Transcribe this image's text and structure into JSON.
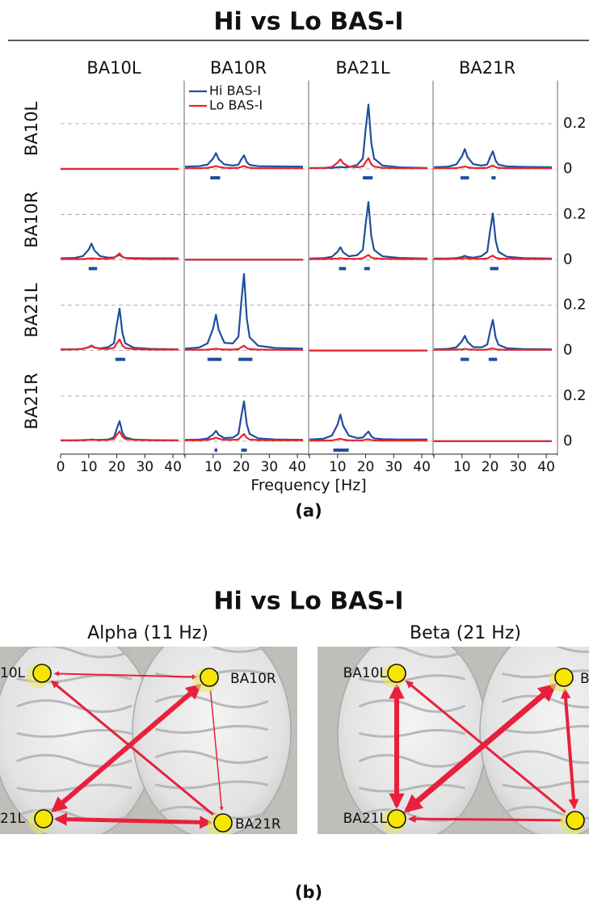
{
  "chart_data": {
    "type": "line",
    "title": "Hi vs Lo BAS-I",
    "xlabel": "Frequency [Hz]",
    "columns": [
      "BA10L",
      "BA10R",
      "BA21L",
      "BA21R"
    ],
    "rows": [
      "BA10L",
      "BA10R",
      "BA21L",
      "BA21R"
    ],
    "series": [
      {
        "name": "Hi BAS-I",
        "color": "#1f4e9c"
      },
      {
        "name": "Lo BAS-I",
        "color": "#e8262b"
      }
    ],
    "x": [
      0,
      5,
      8,
      10,
      11,
      12,
      14,
      17,
      19,
      20,
      21,
      22,
      23,
      26,
      32,
      42
    ],
    "xlim": [
      0,
      44
    ],
    "xticks": [
      0,
      10,
      20,
      30,
      40
    ],
    "ylim": [
      -0.05,
      0.39
    ],
    "yticks": [
      0,
      0.2
    ],
    "grid": true,
    "panels": [
      [
        {
          "values": [
            [
              0,
              0,
              0,
              0,
              0,
              0,
              0,
              0,
              0,
              0,
              0,
              0,
              0,
              0,
              0,
              0
            ],
            [
              0,
              0,
              0,
              0,
              0,
              0,
              0,
              0,
              0,
              0,
              0,
              0,
              0,
              0,
              0,
              0
            ]
          ],
          "sig": []
        },
        {
          "values": [
            [
              0.01,
              0.012,
              0.019,
              0.046,
              0.07,
              0.043,
              0.02,
              0.015,
              0.019,
              0.041,
              0.06,
              0.03,
              0.018,
              0.012,
              0.011,
              0.01
            ],
            [
              0.003,
              0.003,
              0.005,
              0.009,
              0.013,
              0.009,
              0.005,
              0.004,
              0.005,
              0.009,
              0.013,
              0.007,
              0.005,
              0.003,
              0.003,
              0.003
            ]
          ],
          "sig": [
            [
              9,
              12.5
            ]
          ]
        },
        {
          "values": [
            [
              0.004,
              0.004,
              0.005,
              0.007,
              0.009,
              0.007,
              0.008,
              0.018,
              0.046,
              0.172,
              0.284,
              0.116,
              0.046,
              0.015,
              0.007,
              0.004
            ],
            [
              0.003,
              0.004,
              0.009,
              0.027,
              0.043,
              0.025,
              0.01,
              0.007,
              0.011,
              0.03,
              0.048,
              0.021,
              0.01,
              0.005,
              0.003,
              0.003
            ]
          ],
          "sig": [
            [
              19,
              22.5
            ]
          ]
        },
        {
          "values": [
            [
              0.008,
              0.01,
              0.02,
              0.056,
              0.088,
              0.052,
              0.021,
              0.015,
              0.02,
              0.051,
              0.078,
              0.036,
              0.019,
              0.011,
              0.009,
              0.008
            ],
            [
              0.003,
              0.003,
              0.004,
              0.008,
              0.011,
              0.007,
              0.004,
              0.004,
              0.005,
              0.01,
              0.015,
              0.008,
              0.005,
              0.003,
              0.003,
              0.003
            ]
          ],
          "sig": [
            [
              9.5,
              12.5
            ],
            [
              20.5,
              22
            ]
          ]
        }
      ],
      [
        {
          "values": [
            [
              0.006,
              0.008,
              0.016,
              0.045,
              0.071,
              0.042,
              0.016,
              0.009,
              0.01,
              0.016,
              0.021,
              0.012,
              0.008,
              0.007,
              0.006,
              0.006
            ],
            [
              0.003,
              0.003,
              0.003,
              0.005,
              0.006,
              0.005,
              0.004,
              0.004,
              0.007,
              0.018,
              0.028,
              0.013,
              0.007,
              0.004,
              0.003,
              0.003
            ]
          ],
          "sig": [
            [
              10,
              13
            ]
          ]
        },
        {
          "values": [
            [
              0,
              0,
              0,
              0,
              0,
              0,
              0,
              0,
              0,
              0,
              0,
              0,
              0,
              0,
              0,
              0
            ],
            [
              0,
              0,
              0,
              0,
              0,
              0,
              0,
              0,
              0,
              0,
              0,
              0,
              0,
              0,
              0,
              0
            ]
          ],
          "sig": []
        },
        {
          "values": [
            [
              0.005,
              0.007,
              0.013,
              0.035,
              0.055,
              0.033,
              0.015,
              0.02,
              0.044,
              0.156,
              0.255,
              0.105,
              0.043,
              0.015,
              0.008,
              0.005
            ],
            [
              0.003,
              0.003,
              0.004,
              0.005,
              0.007,
              0.005,
              0.004,
              0.004,
              0.006,
              0.014,
              0.021,
              0.01,
              0.006,
              0.004,
              0.003,
              0.003
            ]
          ],
          "sig": [
            [
              10.5,
              13
            ],
            [
              19.5,
              21.5
            ]
          ]
        },
        {
          "values": [
            [
              0.005,
              0.005,
              0.007,
              0.012,
              0.017,
              0.012,
              0.009,
              0.016,
              0.035,
              0.125,
              0.205,
              0.085,
              0.035,
              0.013,
              0.007,
              0.005
            ],
            [
              0.003,
              0.003,
              0.004,
              0.005,
              0.007,
              0.005,
              0.004,
              0.004,
              0.005,
              0.012,
              0.018,
              0.009,
              0.005,
              0.004,
              0.003,
              0.003
            ]
          ],
          "sig": [
            [
              20,
              23
            ]
          ]
        }
      ],
      [
        {
          "values": [
            [
              0.005,
              0.005,
              0.007,
              0.014,
              0.02,
              0.013,
              0.009,
              0.015,
              0.032,
              0.113,
              0.185,
              0.077,
              0.032,
              0.012,
              0.007,
              0.005
            ],
            [
              0.004,
              0.005,
              0.007,
              0.015,
              0.022,
              0.014,
              0.007,
              0.007,
              0.011,
              0.031,
              0.049,
              0.022,
              0.011,
              0.006,
              0.004,
              0.004
            ]
          ],
          "sig": [
            [
              19.5,
              23
            ]
          ]
        },
        {
          "values": [
            [
              0.008,
              0.013,
              0.031,
              0.098,
              0.158,
              0.091,
              0.034,
              0.031,
              0.061,
              0.208,
              0.338,
              0.14,
              0.058,
              0.021,
              0.011,
              0.008
            ],
            [
              0.003,
              0.003,
              0.004,
              0.006,
              0.008,
              0.006,
              0.004,
              0.004,
              0.006,
              0.014,
              0.021,
              0.01,
              0.006,
              0.004,
              0.003,
              0.003
            ]
          ],
          "sig": [
            [
              8,
              13
            ],
            [
              19,
              24
            ]
          ]
        },
        {
          "values": [
            [
              0,
              0,
              0,
              0,
              0,
              0,
              0,
              0,
              0,
              0,
              0,
              0,
              0,
              0,
              0,
              0
            ],
            [
              0,
              0,
              0,
              0,
              0,
              0,
              0,
              0,
              0,
              0,
              0,
              0,
              0,
              0,
              0,
              0
            ]
          ],
          "sig": []
        },
        {
          "values": [
            [
              0.005,
              0.007,
              0.014,
              0.041,
              0.065,
              0.038,
              0.015,
              0.014,
              0.026,
              0.084,
              0.135,
              0.057,
              0.025,
              0.01,
              0.006,
              0.005
            ],
            [
              0.003,
              0.003,
              0.004,
              0.005,
              0.007,
              0.005,
              0.004,
              0.003,
              0.004,
              0.007,
              0.009,
              0.005,
              0.004,
              0.003,
              0.003,
              0.003
            ]
          ],
          "sig": [
            [
              9.5,
              12.5
            ],
            [
              19.5,
              22.5
            ]
          ]
        }
      ],
      [
        {
          "values": [
            [
              0.004,
              0.004,
              0.005,
              0.006,
              0.008,
              0.006,
              0.006,
              0.008,
              0.017,
              0.055,
              0.089,
              0.038,
              0.017,
              0.007,
              0.005,
              0.004
            ],
            [
              0.004,
              0.004,
              0.005,
              0.006,
              0.008,
              0.006,
              0.005,
              0.006,
              0.01,
              0.028,
              0.044,
              0.02,
              0.01,
              0.006,
              0.004,
              0.004
            ]
          ],
          "sig": []
        },
        {
          "values": [
            [
              0.006,
              0.007,
              0.012,
              0.03,
              0.046,
              0.028,
              0.014,
              0.016,
              0.032,
              0.108,
              0.176,
              0.074,
              0.032,
              0.013,
              0.008,
              0.006
            ],
            [
              0.004,
              0.004,
              0.006,
              0.011,
              0.016,
              0.011,
              0.006,
              0.006,
              0.008,
              0.021,
              0.032,
              0.015,
              0.008,
              0.005,
              0.004,
              0.004
            ]
          ],
          "sig": [
            [
              10.5,
              11.5
            ],
            [
              20,
              22
            ]
          ]
        },
        {
          "values": [
            [
              0.008,
              0.011,
              0.025,
              0.074,
              0.118,
              0.069,
              0.025,
              0.014,
              0.016,
              0.03,
              0.043,
              0.022,
              0.013,
              0.009,
              0.008,
              0.008
            ],
            [
              0.003,
              0.003,
              0.004,
              0.008,
              0.011,
              0.007,
              0.004,
              0.004,
              0.004,
              0.007,
              0.009,
              0.005,
              0.004,
              0.003,
              0.003,
              0.003
            ]
          ],
          "sig": [
            [
              8.5,
              14
            ]
          ]
        },
        {
          "values": [
            [
              0,
              0,
              0,
              0,
              0,
              0,
              0,
              0,
              0,
              0,
              0,
              0,
              0,
              0,
              0,
              0
            ],
            [
              0,
              0,
              0,
              0,
              0,
              0,
              0,
              0,
              0,
              0,
              0,
              0,
              0,
              0,
              0,
              0
            ]
          ],
          "sig": []
        }
      ]
    ],
    "panel_label": "(a)"
  },
  "diagram": {
    "title": "Hi vs Lo BAS-I",
    "panel_label": "(b)",
    "panels": [
      {
        "title": "Alpha (11 Hz)",
        "nodes": [
          {
            "label": "10L"
          },
          {
            "label": "BA10R"
          },
          {
            "label": "21L"
          },
          {
            "label": "BA21R"
          }
        ]
      },
      {
        "title": "Beta (21 Hz)",
        "nodes": [
          {
            "label": "BA10L"
          },
          {
            "label": "B"
          },
          {
            "label": "BA21L"
          }
        ]
      }
    ]
  }
}
